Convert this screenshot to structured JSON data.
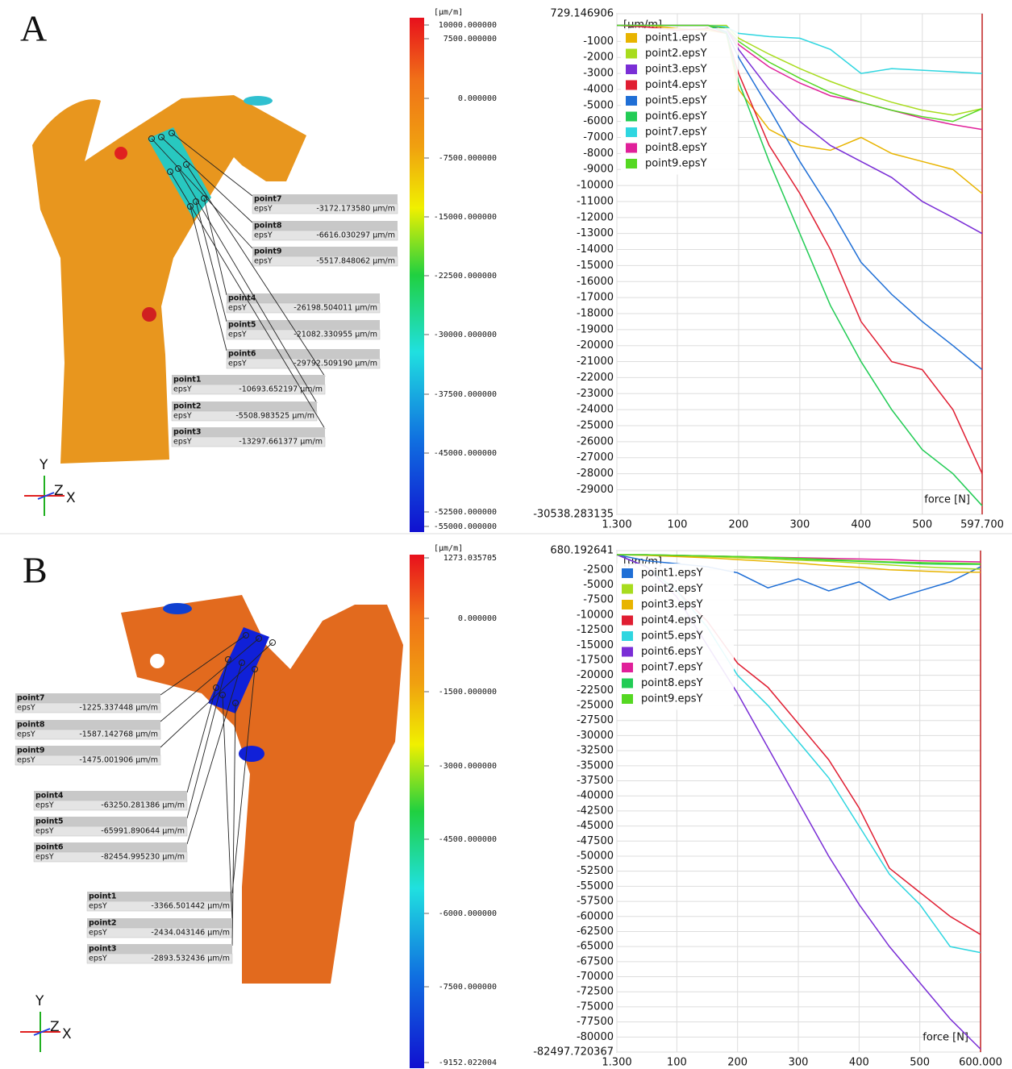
{
  "chart_data": [
    {
      "type": "line",
      "y_label": "[µm/m]",
      "x_label": "force [N]",
      "x": [
        1.3,
        50,
        100,
        150,
        180,
        200,
        250,
        300,
        350,
        400,
        450,
        500,
        550,
        597.7
      ],
      "xlim": [
        1.3,
        597.7
      ],
      "xticks": [
        {
          "value": 1.3,
          "label": "1.300"
        },
        100,
        200,
        300,
        400,
        500,
        {
          "value": 597.7,
          "label": "597.700"
        }
      ],
      "ylim": [
        -30538.283135,
        729.146906
      ],
      "yticks": [
        729.146906,
        -1000,
        -2000,
        -3000,
        -4000,
        -5000,
        -6000,
        -7000,
        -8000,
        -9000,
        -10000,
        -11000,
        -12000,
        -13000,
        -14000,
        -15000,
        -16000,
        -17000,
        -18000,
        -19000,
        -20000,
        -21000,
        -22000,
        -23000,
        -24000,
        -25000,
        -26000,
        -27000,
        -28000,
        -29000,
        -30538.283135
      ],
      "grid": true,
      "series": [
        {
          "name": "point1.epsY",
          "color": "#e8b400",
          "values": [
            0,
            0,
            -200,
            -300,
            -500,
            -4000,
            -6500,
            -7500,
            -7800,
            -7000,
            -8000,
            -8500,
            -9000,
            -10500
          ]
        },
        {
          "name": "point2.epsY",
          "color": "#a8dc1e",
          "values": [
            0,
            0,
            0,
            0,
            0,
            -800,
            -1800,
            -2700,
            -3500,
            -4200,
            -4800,
            -5300,
            -5600,
            -5200
          ]
        },
        {
          "name": "point3.epsY",
          "color": "#7a2ed6",
          "values": [
            0,
            0,
            0,
            0,
            -200,
            -1500,
            -4000,
            -6000,
            -7500,
            -8500,
            -9500,
            -11000,
            -12000,
            -13000
          ]
        },
        {
          "name": "point4.epsY",
          "color": "#e01e32",
          "values": [
            0,
            -100,
            -300,
            -200,
            -500,
            -3000,
            -7500,
            -10500,
            -14000,
            -18500,
            -21000,
            -21500,
            -24000,
            -28000
          ]
        },
        {
          "name": "point5.epsY",
          "color": "#1f6fd6",
          "values": [
            0,
            0,
            0,
            0,
            -400,
            -2000,
            -5200,
            -8500,
            -11500,
            -14800,
            -16800,
            -18500,
            -20000,
            -21500
          ]
        },
        {
          "name": "point6.epsY",
          "color": "#22cc55",
          "values": [
            0,
            0,
            0,
            0,
            -500,
            -3500,
            -8500,
            -13000,
            -17500,
            -21000,
            -24000,
            -26500,
            -28000,
            -30000
          ]
        },
        {
          "name": "point7.epsY",
          "color": "#2fd6e0",
          "values": [
            0,
            0,
            0,
            0,
            -100,
            -500,
            -700,
            -800,
            -1500,
            -3000,
            -2700,
            -2800,
            -2900,
            -3000
          ]
        },
        {
          "name": "point8.epsY",
          "color": "#e0209a",
          "values": [
            0,
            0,
            0,
            0,
            -200,
            -1200,
            -2600,
            -3600,
            -4400,
            -4800,
            -5300,
            -5800,
            -6200,
            -6500
          ]
        },
        {
          "name": "point9.epsY",
          "color": "#55d822",
          "values": [
            0,
            0,
            0,
            0,
            -200,
            -1000,
            -2300,
            -3300,
            -4200,
            -4800,
            -5300,
            -5700,
            -6000,
            -5200
          ]
        }
      ]
    },
    {
      "type": "line",
      "y_label": "[µm/m]",
      "x_label": "force [N]",
      "x": [
        1.3,
        50,
        100,
        150,
        200,
        250,
        300,
        350,
        400,
        450,
        500,
        550,
        600
      ],
      "xlim": [
        1.3,
        600
      ],
      "xticks": [
        {
          "value": 1.3,
          "label": "1.300"
        },
        100,
        200,
        300,
        400,
        500,
        {
          "value": 600,
          "label": "600.000"
        }
      ],
      "ylim": [
        -82497.720367,
        680.192641
      ],
      "yticks": [
        680.192641,
        -2500,
        -5000,
        -7500,
        -10000,
        -12500,
        -15000,
        -17500,
        -20000,
        -22500,
        -25000,
        -27500,
        -30000,
        -32500,
        -35000,
        -37500,
        -40000,
        -42500,
        -45000,
        -47500,
        -50000,
        -52500,
        -55000,
        -57500,
        -60000,
        -62500,
        -65000,
        -67500,
        -70000,
        -72500,
        -75000,
        -77500,
        -80000,
        -82497.720367
      ],
      "grid": true,
      "series": [
        {
          "name": "point1.epsY",
          "color": "#1f6fd6",
          "values": [
            0,
            -1000,
            -1500,
            -2000,
            -3000,
            -5500,
            -4000,
            -6000,
            -4500,
            -7500,
            -6000,
            -4500,
            -2000
          ]
        },
        {
          "name": "point2.epsY",
          "color": "#a8dc1e",
          "values": [
            0,
            0,
            -200,
            -300,
            -500,
            -700,
            -900,
            -1100,
            -1400,
            -1700,
            -2000,
            -2200,
            -2400
          ]
        },
        {
          "name": "point3.epsY",
          "color": "#e8b400",
          "values": [
            0,
            -100,
            -300,
            -500,
            -800,
            -1100,
            -1400,
            -1800,
            -2100,
            -2500,
            -2700,
            -2900,
            -2900
          ]
        },
        {
          "name": "point4.epsY",
          "color": "#e01e32",
          "values": [
            0,
            -2000,
            -6000,
            -11000,
            -18000,
            -22000,
            -28000,
            -34000,
            -42000,
            -52000,
            -56000,
            -60000,
            -63000
          ]
        },
        {
          "name": "point5.epsY",
          "color": "#2fd6e0",
          "values": [
            0,
            -2000,
            -6000,
            -12000,
            -20000,
            -25000,
            -31000,
            -37000,
            -45000,
            -53000,
            -58000,
            -65000,
            -66000
          ]
        },
        {
          "name": "point6.epsY",
          "color": "#7a2ed6",
          "values": [
            0,
            -2000,
            -7000,
            -15000,
            -23000,
            -32000,
            -41000,
            -50000,
            -58000,
            -65000,
            -71000,
            -77000,
            -82000
          ]
        },
        {
          "name": "point7.epsY",
          "color": "#e0209a",
          "values": [
            0,
            0,
            -100,
            -200,
            -300,
            -400,
            -500,
            -600,
            -700,
            -800,
            -1000,
            -1100,
            -1200
          ]
        },
        {
          "name": "point8.epsY",
          "color": "#22cc55",
          "values": [
            0,
            0,
            -100,
            -200,
            -300,
            -500,
            -700,
            -900,
            -1100,
            -1300,
            -1500,
            -1600,
            -1600
          ]
        },
        {
          "name": "point9.epsY",
          "color": "#55d822",
          "values": [
            0,
            0,
            -100,
            -200,
            -300,
            -400,
            -600,
            -800,
            -1000,
            -1200,
            -1300,
            -1400,
            -1500
          ]
        }
      ]
    }
  ],
  "panels": [
    {
      "label": "A",
      "axes": [
        "Y",
        "Z",
        "X"
      ],
      "colorbar": {
        "unit": "[µm/m]",
        "labels": [
          "10000.000000",
          "7500.000000",
          "0.000000",
          "-7500.000000",
          "-15000.000000",
          "-22500.000000",
          "-30000.000000",
          "-37500.000000",
          "-45000.000000",
          "-52500.000000",
          "-55000.000000"
        ]
      },
      "annotations": [
        {
          "name": "point7",
          "quantity": "epsY",
          "value": "-3172.173580 µm/m"
        },
        {
          "name": "point8",
          "quantity": "epsY",
          "value": "-6616.030297 µm/m"
        },
        {
          "name": "point9",
          "quantity": "epsY",
          "value": "-5517.848062 µm/m"
        },
        {
          "name": "point4",
          "quantity": "epsY",
          "value": "-26198.504011 µm/m"
        },
        {
          "name": "point5",
          "quantity": "epsY",
          "value": "-21082.330955 µm/m"
        },
        {
          "name": "point6",
          "quantity": "epsY",
          "value": "-29792.509190 µm/m"
        },
        {
          "name": "point1",
          "quantity": "epsY",
          "value": "-10693.652197 µm/m"
        },
        {
          "name": "point2",
          "quantity": "epsY",
          "value": "-5508.983525 µm/m"
        },
        {
          "name": "point3",
          "quantity": "epsY",
          "value": "-13297.661377 µm/m"
        }
      ]
    },
    {
      "label": "B",
      "axes": [
        "Y",
        "Z",
        "X"
      ],
      "colorbar": {
        "unit": "[µm/m]",
        "labels": [
          "1273.035705",
          "0.000000",
          "-1500.000000",
          "-3000.000000",
          "-4500.000000",
          "-6000.000000",
          "-7500.000000",
          "-9152.022004"
        ]
      },
      "annotations": [
        {
          "name": "point7",
          "quantity": "epsY",
          "value": "-1225.337448 µm/m"
        },
        {
          "name": "point8",
          "quantity": "epsY",
          "value": "-1587.142768 µm/m"
        },
        {
          "name": "point9",
          "quantity": "epsY",
          "value": "-1475.001906 µm/m"
        },
        {
          "name": "point4",
          "quantity": "epsY",
          "value": "-63250.281386 µm/m"
        },
        {
          "name": "point5",
          "quantity": "epsY",
          "value": "-65991.890644 µm/m"
        },
        {
          "name": "point6",
          "quantity": "epsY",
          "value": "-82454.995230 µm/m"
        },
        {
          "name": "point1",
          "quantity": "epsY",
          "value": "-3366.501442 µm/m"
        },
        {
          "name": "point2",
          "quantity": "epsY",
          "value": "-2434.043146 µm/m"
        },
        {
          "name": "point3",
          "quantity": "epsY",
          "value": "-2893.532436 µm/m"
        }
      ]
    }
  ]
}
